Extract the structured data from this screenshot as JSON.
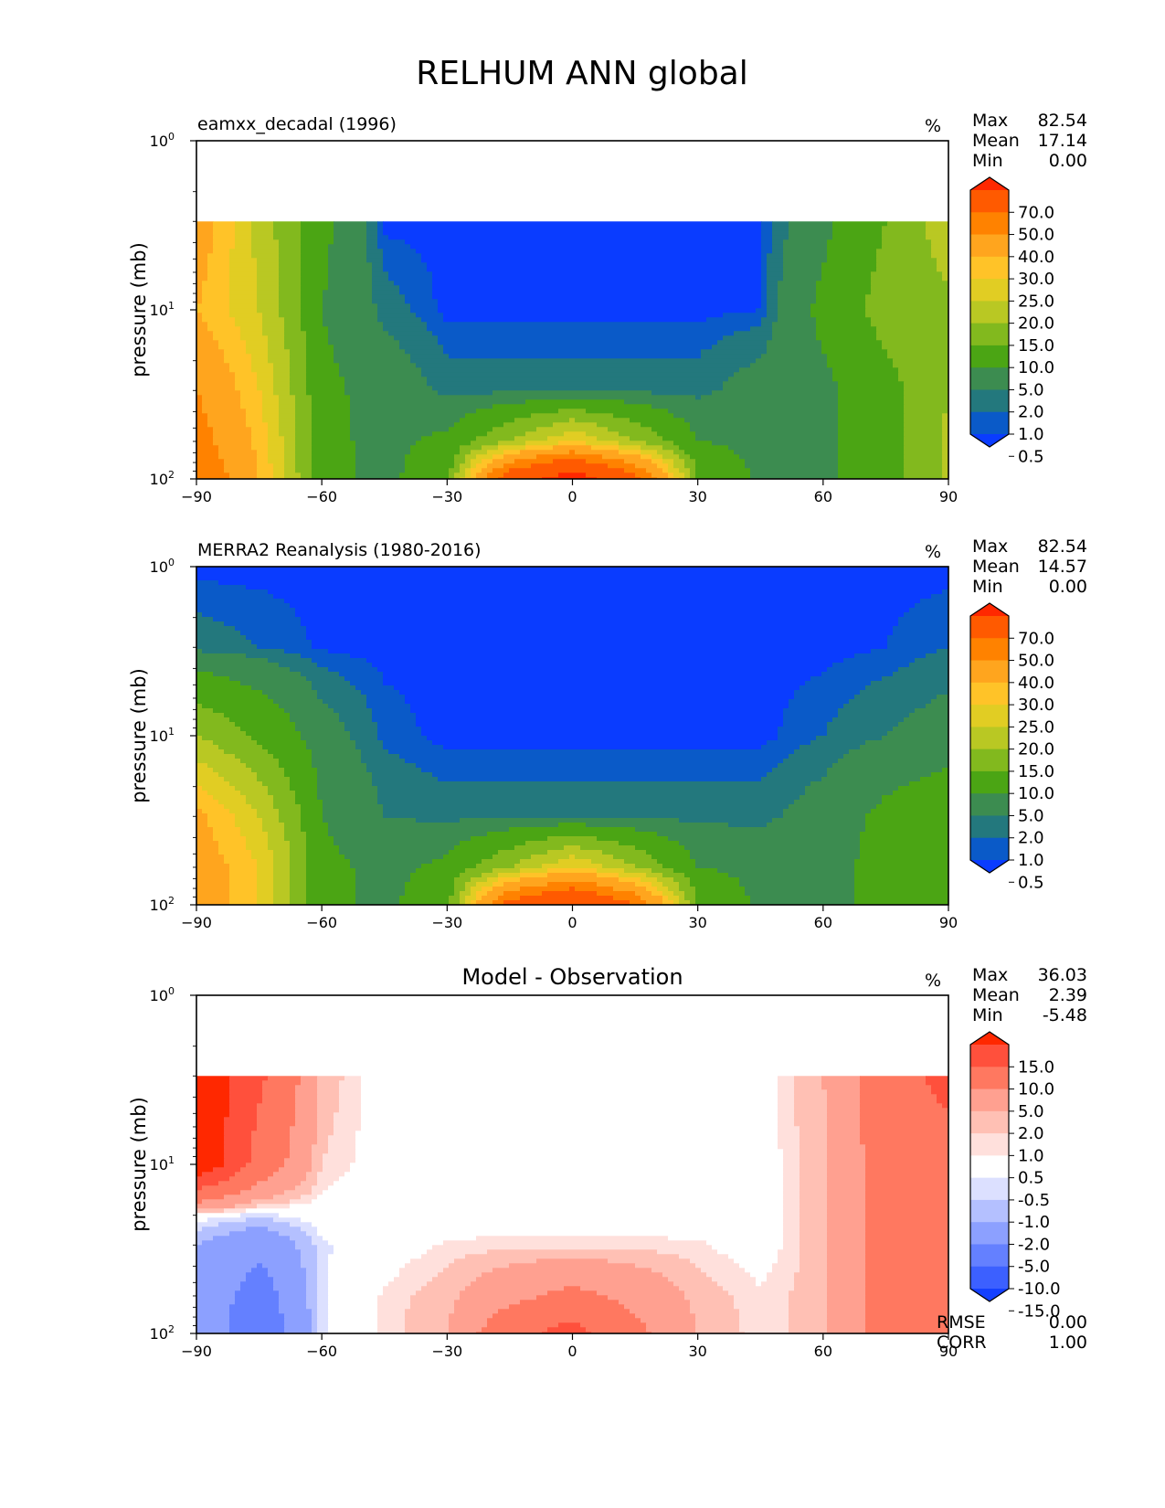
{
  "figure": {
    "title": "RELHUM ANN global"
  },
  "chart_data": [
    {
      "type": "heatmap",
      "subtitle": "eamxx_decadal (1996)",
      "units": "%",
      "ylabel": "pressure (mb)",
      "xlabel": "",
      "xlim": [
        -90,
        90
      ],
      "x_ticks": [
        "−90",
        "−60",
        "−30",
        "0",
        "30",
        "60",
        "90"
      ],
      "ylim": [
        1,
        100
      ],
      "y_scale": "log",
      "y_ticks": [
        "10^0",
        "10^1",
        "10^2"
      ],
      "stats": {
        "max_label": "Max",
        "max": "82.54",
        "mean_label": "Mean",
        "mean": "17.14",
        "min_label": "Min",
        "min": "0.00"
      },
      "colorbar": {
        "levels": [
          "70.0",
          "50.0",
          "40.0",
          "30.0",
          "25.0",
          "20.0",
          "15.0",
          "10.0",
          "5.0",
          "2.0",
          "1.0",
          "0.5"
        ],
        "colors": [
          "#ff2800",
          "#ff5a00",
          "#ff8200",
          "#ffa51e",
          "#ffc328",
          "#e1cd23",
          "#b9c823",
          "#82b91e",
          "#4ba514",
          "#3c8c50",
          "#23787d",
          "#0a5ac8",
          "#0a3cff"
        ]
      },
      "field": {
        "x": [
          -90,
          -75,
          -60,
          -45,
          -30,
          -15,
          0,
          15,
          30,
          45,
          60,
          75,
          90
        ],
        "pressure_mb": [
          3,
          10,
          30,
          60,
          100
        ],
        "values": [
          [
            35,
            18,
            6,
            0.3,
            0.3,
            0.3,
            0.3,
            0.3,
            0.3,
            0.3,
            4,
            10,
            18
          ],
          [
            30,
            20,
            5,
            1.5,
            0.3,
            0.3,
            0.3,
            0.3,
            0.3,
            0.5,
            6,
            12,
            14
          ],
          [
            40,
            25,
            6,
            3.5,
            1.5,
            1.5,
            1.5,
            1.5,
            1.5,
            3,
            4,
            8,
            15
          ],
          [
            45,
            28,
            6,
            4,
            6,
            15,
            25,
            15,
            5,
            4,
            4,
            8,
            16
          ],
          [
            50,
            30,
            6,
            4,
            8,
            60,
            80,
            55,
            10,
            4,
            4,
            8,
            16
          ]
        ]
      }
    },
    {
      "type": "heatmap",
      "subtitle": "MERRA2 Reanalysis (1980-2016)",
      "units": "%",
      "ylabel": "pressure (mb)",
      "xlabel": "",
      "xlim": [
        -90,
        90
      ],
      "x_ticks": [
        "−90",
        "−60",
        "−30",
        "0",
        "30",
        "60",
        "90"
      ],
      "ylim": [
        1,
        100
      ],
      "y_scale": "log",
      "y_ticks": [
        "10^0",
        "10^1",
        "10^2"
      ],
      "stats": {
        "max_label": "Max",
        "max": "82.54",
        "mean_label": "Mean",
        "mean": "14.57",
        "min_label": "Min",
        "min": "0.00"
      },
      "colorbar": {
        "levels": [
          "70.0",
          "50.0",
          "40.0",
          "30.0",
          "25.0",
          "20.0",
          "15.0",
          "10.0",
          "5.0",
          "2.0",
          "1.0",
          "0.5"
        ],
        "colors": [
          "#ff2800",
          "#ff5a00",
          "#ff8200",
          "#ffa51e",
          "#ffc328",
          "#e1cd23",
          "#b9c823",
          "#82b91e",
          "#4ba514",
          "#3c8c50",
          "#23787d",
          "#0a5ac8",
          "#0a3cff"
        ]
      },
      "field": {
        "x": [
          -90,
          -75,
          -60,
          -45,
          -30,
          -15,
          0,
          15,
          30,
          45,
          60,
          75,
          90
        ],
        "pressure_mb": [
          1,
          3,
          10,
          30,
          60,
          100
        ],
        "values": [
          [
            0.3,
            0.3,
            0.3,
            0.3,
            0.3,
            0.3,
            0.3,
            0.3,
            0.3,
            0.3,
            0.3,
            0.3,
            0.3
          ],
          [
            1.5,
            1,
            0.4,
            0.3,
            0.3,
            0.3,
            0.3,
            0.3,
            0.3,
            0.3,
            0.3,
            0.5,
            1
          ],
          [
            15,
            9,
            3,
            0.8,
            0.3,
            0.3,
            0.3,
            0.3,
            0.3,
            0.3,
            1,
            2,
            3
          ],
          [
            32,
            20,
            5,
            2,
            1.5,
            1.5,
            1.5,
            1.5,
            1.5,
            1.5,
            3,
            6,
            8
          ],
          [
            35,
            25,
            6,
            4,
            6,
            15,
            25,
            15,
            5,
            4,
            4,
            6,
            9
          ],
          [
            35,
            25,
            6,
            4,
            8,
            55,
            70,
            50,
            10,
            4,
            4,
            6,
            9
          ]
        ]
      }
    },
    {
      "type": "heatmap",
      "subtitle": "Model - Observation",
      "units": "%",
      "ylabel": "pressure (mb)",
      "xlabel": "",
      "xlim": [
        -90,
        90
      ],
      "x_ticks": [
        "−90",
        "−60",
        "−30",
        "0",
        "30",
        "60",
        "90"
      ],
      "ylim": [
        1,
        100
      ],
      "y_scale": "log",
      "y_ticks": [
        "10^0",
        "10^1",
        "10^2"
      ],
      "stats": {
        "max_label": "Max",
        "max": "36.03",
        "mean_label": "Mean",
        "mean": "2.39",
        "min_label": "Min",
        "min": "-5.48"
      },
      "rmse_label": "RMSE",
      "rmse": "0.00",
      "corr_label": "CORR",
      "corr": "1.00",
      "colorbar": {
        "levels": [
          "15.0",
          "10.0",
          "5.0",
          "2.0",
          "1.0",
          "0.5",
          "-0.5",
          "-1.0",
          "-2.0",
          "-5.0",
          "-10.0",
          "-15.0"
        ],
        "colors": [
          "#ff2800",
          "#ff503c",
          "#ff7860",
          "#ffa090",
          "#ffc0b4",
          "#ffe0dc",
          "#ffffff",
          "#dce0ff",
          "#b4c0ff",
          "#8ca0ff",
          "#6480ff",
          "#3c60ff",
          "#1440ff"
        ]
      },
      "field": {
        "x": [
          -90,
          -75,
          -60,
          -45,
          -30,
          -15,
          0,
          15,
          30,
          45,
          60,
          75,
          90
        ],
        "pressure_mb": [
          3,
          10,
          20,
          30,
          60,
          100
        ],
        "values": [
          [
            20,
            11,
            1.5,
            0,
            0,
            0,
            0,
            0,
            0,
            0,
            2,
            7,
            12
          ],
          [
            20,
            8,
            1,
            0,
            0,
            0,
            0,
            0,
            0,
            0,
            1.5,
            7,
            7
          ],
          [
            0,
            -0.7,
            0,
            0,
            0,
            0,
            0,
            0,
            0,
            0,
            1.5,
            7,
            7
          ],
          [
            -2,
            -4,
            -0.6,
            0,
            0.6,
            0.7,
            0.7,
            0.7,
            0.6,
            0,
            1.5,
            7,
            7
          ],
          [
            -2,
            -7,
            -0.6,
            0.6,
            1.5,
            4,
            6,
            4,
            1.5,
            0.6,
            1.5,
            7,
            7
          ],
          [
            -2,
            -8,
            -0.6,
            0.6,
            2,
            8,
            12,
            6,
            2,
            0.6,
            1.5,
            7,
            7
          ]
        ]
      }
    }
  ]
}
